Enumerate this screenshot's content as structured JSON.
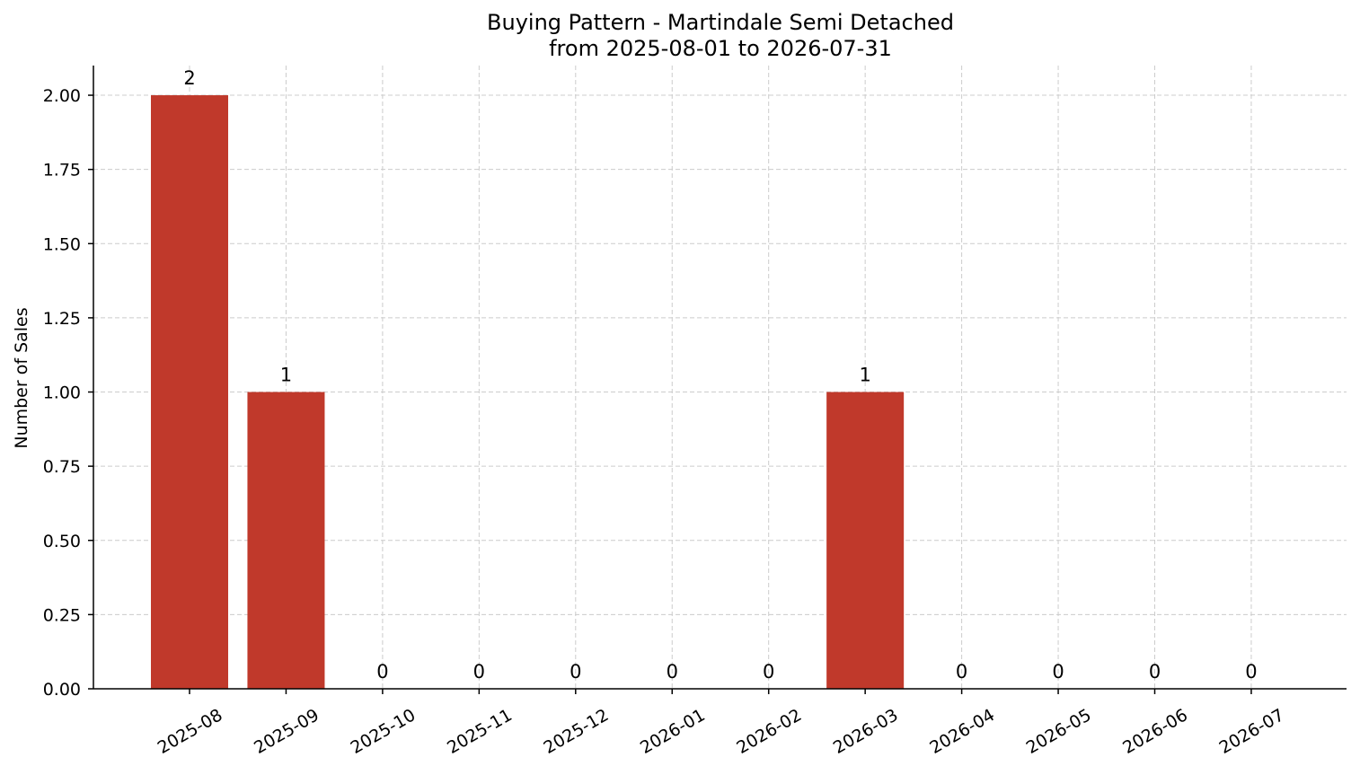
{
  "chart_data": {
    "type": "bar",
    "title": "Buying Pattern - Martindale Semi Detached",
    "subtitle": "from 2025-08-01 to 2026-07-31",
    "xlabel": "",
    "ylabel": "Number of Sales",
    "categories": [
      "2025-08",
      "2025-09",
      "2025-10",
      "2025-11",
      "2025-12",
      "2026-01",
      "2026-02",
      "2026-03",
      "2026-04",
      "2026-05",
      "2026-06",
      "2026-07"
    ],
    "values": [
      2,
      1,
      0,
      0,
      0,
      0,
      0,
      1,
      0,
      0,
      0,
      0
    ],
    "data_labels": [
      "2",
      "1",
      "0",
      "0",
      "0",
      "0",
      "0",
      "1",
      "0",
      "0",
      "0",
      "0"
    ],
    "ylim": [
      0,
      2.1
    ],
    "yticks": [
      0,
      0.25,
      0.5,
      0.75,
      1.0,
      1.25,
      1.5,
      1.75,
      2.0
    ],
    "ytick_labels": [
      "0.00",
      "0.25",
      "0.50",
      "0.75",
      "1.00",
      "1.25",
      "1.50",
      "1.75",
      "2.00"
    ],
    "grid": true,
    "bar_color": "#c0392b"
  }
}
